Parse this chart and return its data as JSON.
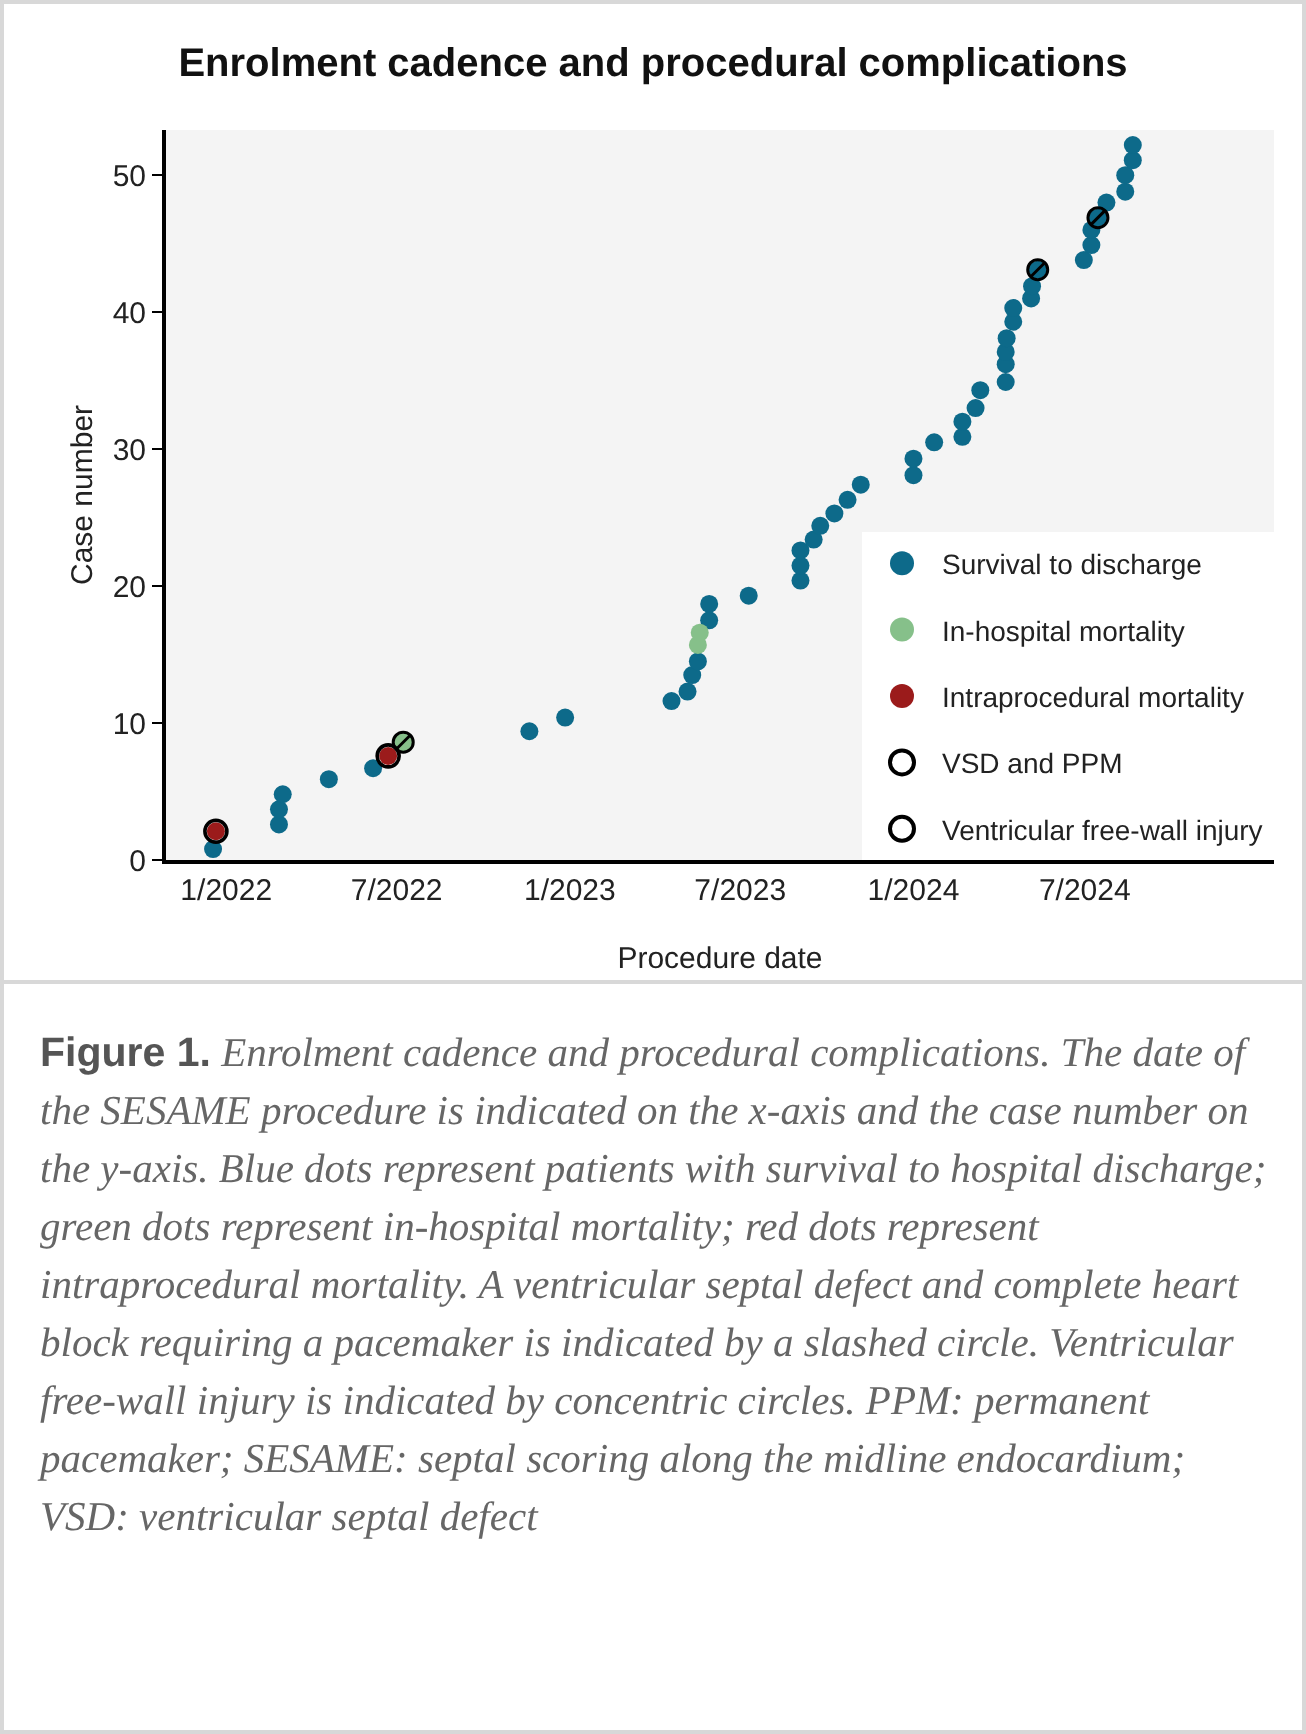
{
  "chart_data": {
    "type": "scatter",
    "title": "Enrolment cadence and procedural complications",
    "xlabel": "Procedure date",
    "ylabel": "Case number",
    "marker": "circle",
    "legend": "bottom right",
    "grid": false,
    "xlim": [
      "2021-10-29",
      "2025-01-18"
    ],
    "xticks": [
      {
        "value": "2022-01-01",
        "label": "1/2022"
      },
      {
        "value": "2022-07-01",
        "label": "7/2022"
      },
      {
        "value": "2023-01-01",
        "label": "1/2023"
      },
      {
        "value": "2023-07-01",
        "label": "7/2023"
      },
      {
        "value": "2024-01-01",
        "label": "1/2024"
      },
      {
        "value": "2024-07-01",
        "label": "7/2024"
      }
    ],
    "ylim": [
      0,
      53.3
    ],
    "yticks": [
      0,
      10,
      20,
      30,
      40,
      50
    ],
    "series": [
      {
        "name": "Survival to discharge",
        "color": "#0d6a8a",
        "x": [
          "2021-12-18",
          "2022-02-26",
          "2022-02-26",
          "2022-03-02",
          "2022-04-20",
          "2022-06-06",
          "2022-11-19",
          "2022-12-27",
          "2023-04-19",
          "2023-05-06",
          "2023-05-11",
          "2023-05-17",
          "2023-05-29",
          "2023-05-29",
          "2023-07-10",
          "2023-09-03",
          "2023-09-03",
          "2023-09-03",
          "2023-09-17",
          "2023-09-24",
          "2023-10-09",
          "2023-10-23",
          "2023-11-06",
          "2024-01-01",
          "2024-01-01",
          "2024-01-23",
          "2024-02-22",
          "2024-02-22",
          "2024-03-07",
          "2024-03-12",
          "2024-04-08",
          "2024-04-08",
          "2024-04-08",
          "2024-04-09",
          "2024-04-16",
          "2024-04-16",
          "2024-05-05",
          "2024-05-06",
          "2024-05-12",
          "2024-06-30",
          "2024-07-08",
          "2024-07-08",
          "2024-07-15",
          "2024-07-24",
          "2024-08-13",
          "2024-08-13",
          "2024-08-21",
          "2024-08-21"
        ],
        "values": [
          0.8,
          2.6,
          3.7,
          4.8,
          5.9,
          6.7,
          9.4,
          10.4,
          11.6,
          12.3,
          13.5,
          14.5,
          17.5,
          18.7,
          19.3,
          20.4,
          21.5,
          22.6,
          23.4,
          24.4,
          25.3,
          26.3,
          27.4,
          28.1,
          29.3,
          30.5,
          30.9,
          32.0,
          33.0,
          34.3,
          34.9,
          36.2,
          37.1,
          38.1,
          39.3,
          40.3,
          41.0,
          41.9,
          43.1,
          43.8,
          44.9,
          46.0,
          46.9,
          48.0,
          48.8,
          50.0,
          51.1,
          52.2
        ]
      },
      {
        "name": "In-hospital mortality",
        "color": "#86c08a",
        "x": [
          "2022-07-08",
          "2023-05-17",
          "2023-05-19"
        ],
        "values": [
          8.6,
          15.7,
          16.6
        ]
      },
      {
        "name": "Intraprocedural mortality",
        "color": "#9b1b1b",
        "x": [
          "2021-12-21",
          "2022-06-22"
        ],
        "values": [
          2.1,
          7.6
        ]
      },
      {
        "name": "VSD and PPM",
        "color": "#000000",
        "marker": "cross",
        "x": [
          "2022-07-08",
          "2024-05-12",
          "2024-07-15"
        ],
        "values": [
          8.6,
          43.1,
          46.9
        ]
      },
      {
        "name": "Ventricular free-wall injury",
        "color": "#000000",
        "marker": "circle",
        "x": [
          "2021-12-21",
          "2022-06-22"
        ],
        "values": [
          2.1,
          7.6
        ]
      }
    ],
    "annotations": [
      "Figure 1.",
      "Enrolment cadence and procedural complications. The date of the SESAME procedure is indicated on the x-axis and the case number on the y-axis. Blue dots represent patients with survival to hospital discharge; green dots represent in-hospital mortality; red dots represent intraprocedural mortality. A ventricular septal defect and complete heart block requiring a pacemaker is indicated by a slashed circle. Ventricular free-wall injury is indicated by concentric circles. PPM: permanent pacemaker; SESAME: septal scoring along the midline endocardium; VSD: ventricular septal defect"
    ]
  }
}
